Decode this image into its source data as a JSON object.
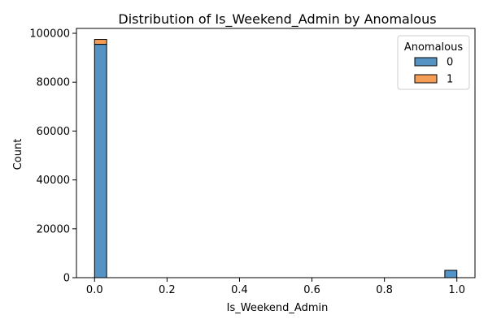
{
  "chart_data": {
    "type": "bar",
    "title": "Distribution of Is_Weekend_Admin by Anomalous",
    "xlabel": "Is_Weekend_Admin",
    "ylabel": "Count",
    "xlim": [
      -0.05,
      1.05
    ],
    "ylim": [
      0,
      102000
    ],
    "xticks": [
      0.0,
      0.2,
      0.4,
      0.6,
      0.8,
      1.0
    ],
    "xtick_labels": [
      "0.0",
      "0.2",
      "0.4",
      "0.6",
      "0.8",
      "1.0"
    ],
    "yticks": [
      0,
      20000,
      40000,
      60000,
      80000,
      100000
    ],
    "ytick_labels": [
      "0",
      "20000",
      "40000",
      "60000",
      "80000",
      "100000"
    ],
    "bin_width": 0.0333,
    "multiple": "stack",
    "grid": false,
    "legend": {
      "title": "Anomalous",
      "placement": "top-right"
    },
    "series": [
      {
        "name": "0",
        "color": "#5593c4",
        "bins": [
          {
            "x_start": 0.0,
            "x_end": 0.0333,
            "value": 95500
          },
          {
            "x_start": 0.9667,
            "x_end": 1.0,
            "value": 3000
          }
        ]
      },
      {
        "name": "1",
        "color": "#f59d54",
        "bins": [
          {
            "x_start": 0.0,
            "x_end": 0.0333,
            "value": 2000
          },
          {
            "x_start": 0.9667,
            "x_end": 1.0,
            "value": 0
          }
        ]
      }
    ]
  }
}
